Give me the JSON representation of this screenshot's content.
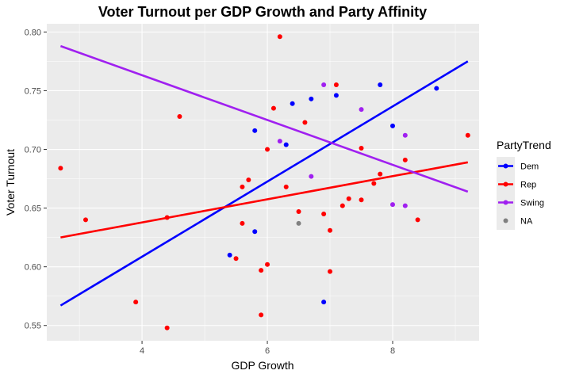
{
  "chart_data": {
    "type": "scatter",
    "title": "Voter Turnout per GDP Growth and Party Affinity",
    "xlabel": "GDP Growth",
    "ylabel": "Voter Turnout",
    "xlim": [
      2.48,
      9.38
    ],
    "ylim": [
      0.537,
      0.807
    ],
    "x_ticks": [
      4,
      6,
      8
    ],
    "x_tick_labels": [
      "4",
      "6",
      "8"
    ],
    "y_ticks": [
      0.55,
      0.6,
      0.65,
      0.7,
      0.75,
      0.8
    ],
    "y_tick_labels": [
      "0.55",
      "0.60",
      "0.65",
      "0.70",
      "0.75",
      "0.80"
    ],
    "grid": true,
    "legend": {
      "title": "PartyTrend",
      "position": "right",
      "entries": [
        {
          "label": "Dem",
          "color": "#0000ff",
          "line": true
        },
        {
          "label": "Rep",
          "color": "#ff0000",
          "line": true
        },
        {
          "label": "Swing",
          "color": "#a020f0",
          "line": true
        },
        {
          "label": "NA",
          "color": "#808080",
          "line": false
        }
      ]
    },
    "series": [
      {
        "name": "Dem",
        "color": "#0000ff",
        "points": [
          [
            5.4,
            0.61
          ],
          [
            5.8,
            0.63
          ],
          [
            5.8,
            0.716
          ],
          [
            6.3,
            0.704
          ],
          [
            6.4,
            0.739
          ],
          [
            6.7,
            0.743
          ],
          [
            6.9,
            0.57
          ],
          [
            7.1,
            0.746
          ],
          [
            7.8,
            0.755
          ],
          [
            8.0,
            0.72
          ],
          [
            8.7,
            0.752
          ]
        ],
        "trend": {
          "x": [
            2.7,
            9.2
          ],
          "y": [
            0.567,
            0.775
          ]
        }
      },
      {
        "name": "Rep",
        "color": "#ff0000",
        "points": [
          [
            2.7,
            0.684
          ],
          [
            3.1,
            0.64
          ],
          [
            3.9,
            0.57
          ],
          [
            4.4,
            0.548
          ],
          [
            4.4,
            0.642
          ],
          [
            4.6,
            0.728
          ],
          [
            5.5,
            0.607
          ],
          [
            5.6,
            0.637
          ],
          [
            5.6,
            0.668
          ],
          [
            5.7,
            0.674
          ],
          [
            5.9,
            0.597
          ],
          [
            5.9,
            0.559
          ],
          [
            6.0,
            0.602
          ],
          [
            6.0,
            0.7
          ],
          [
            6.1,
            0.735
          ],
          [
            6.2,
            0.796
          ],
          [
            6.3,
            0.668
          ],
          [
            6.5,
            0.647
          ],
          [
            6.6,
            0.723
          ],
          [
            6.9,
            0.645
          ],
          [
            7.0,
            0.631
          ],
          [
            7.0,
            0.596
          ],
          [
            7.1,
            0.755
          ],
          [
            7.2,
            0.652
          ],
          [
            7.3,
            0.658
          ],
          [
            7.5,
            0.701
          ],
          [
            7.5,
            0.657
          ],
          [
            7.7,
            0.671
          ],
          [
            7.8,
            0.679
          ],
          [
            8.2,
            0.691
          ],
          [
            8.4,
            0.64
          ],
          [
            9.2,
            0.712
          ]
        ],
        "trend": {
          "x": [
            2.7,
            9.2
          ],
          "y": [
            0.625,
            0.689
          ]
        }
      },
      {
        "name": "Swing",
        "color": "#a020f0",
        "points": [
          [
            6.2,
            0.707
          ],
          [
            6.7,
            0.677
          ],
          [
            6.9,
            0.755
          ],
          [
            7.5,
            0.734
          ],
          [
            8.0,
            0.653
          ],
          [
            8.2,
            0.652
          ],
          [
            8.2,
            0.712
          ]
        ],
        "trend": {
          "x": [
            2.7,
            9.2
          ],
          "y": [
            0.788,
            0.664
          ]
        }
      },
      {
        "name": "NA",
        "color": "#808080",
        "points": [
          [
            6.5,
            0.637
          ]
        ],
        "trend": null
      }
    ]
  }
}
